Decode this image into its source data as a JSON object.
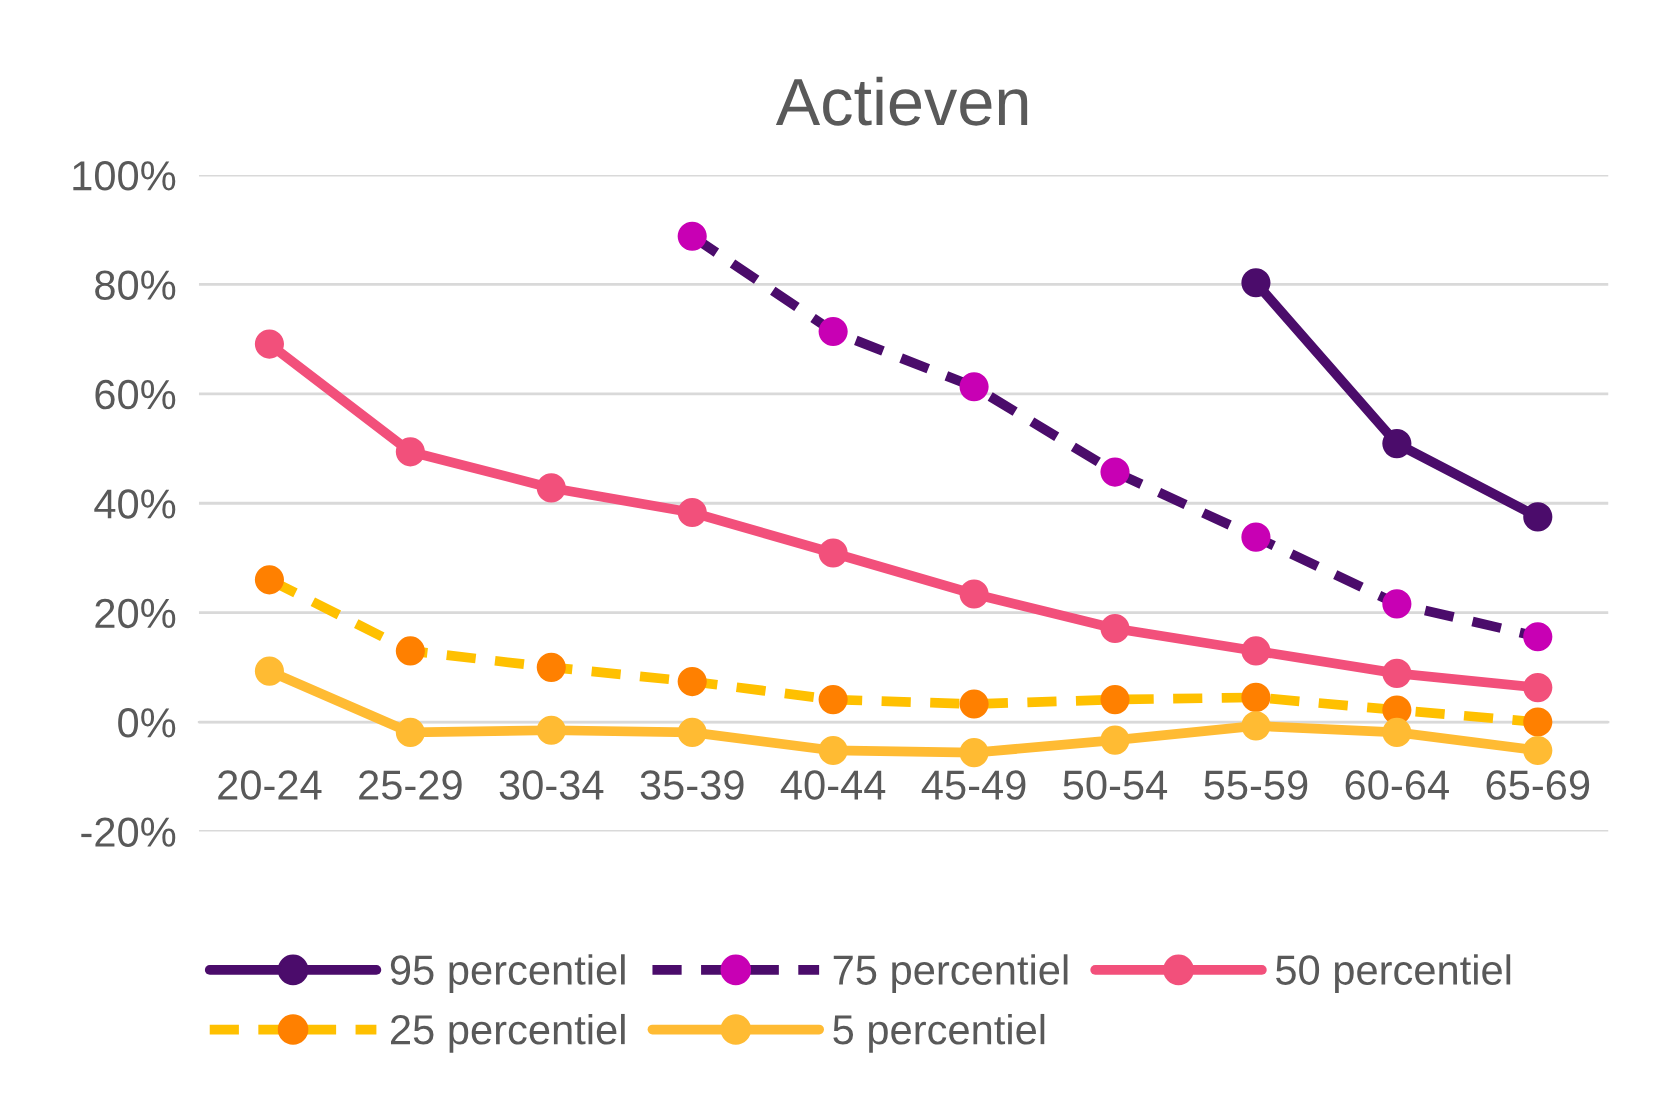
{
  "chart_data": {
    "type": "line",
    "title": "Actieven",
    "categories": [
      "20-24",
      "25-29",
      "30-34",
      "35-39",
      "40-44",
      "45-49",
      "50-54",
      "55-59",
      "60-64",
      "65-69"
    ],
    "series": [
      {
        "name": "95 percentiel",
        "color": "#4b0c6b",
        "colors": [
          "#4b0c6b",
          "#4b0c6b",
          "#4b0c6b",
          "#4b0c6b",
          "#4b0c6b",
          "#4b0c6b",
          "#4b0c6b",
          "#4b0c6b",
          "#4b0c6b",
          "#4b0c6b"
        ],
        "line_style": "solid",
        "values": [
          null,
          null,
          null,
          null,
          null,
          null,
          null,
          80.3,
          50.9,
          37.5
        ]
      },
      {
        "name": "75 percentiel",
        "color": "#4b0c6b",
        "colors": [
          "#c800b4",
          "#c800b4",
          "#c800b4",
          "#c800b4",
          "#c800b4",
          "#c800b4",
          "#c800b4",
          "#c800b4",
          "#c800b4",
          "#c800b4"
        ],
        "line_style": "dashed",
        "values": [
          null,
          null,
          null,
          88.8,
          71.4,
          61.3,
          45.7,
          33.8,
          21.6,
          15.6
        ]
      },
      {
        "name": "50 percentiel",
        "color": "#f2507b",
        "colors": [
          "#f2507b",
          "#f2507b",
          "#f2507b",
          "#f2507b",
          "#f2507b",
          "#f2507b",
          "#f2507b",
          "#f2507b",
          "#f2507b",
          "#f2507b"
        ],
        "line_style": "solid",
        "values": [
          69.1,
          49.4,
          42.8,
          38.3,
          30.9,
          23.4,
          17.1,
          13.0,
          8.9,
          6.3
        ]
      },
      {
        "name": "25 percentiel",
        "color": "#ffc000",
        "colors": [
          "#ff8000",
          "#ff8000",
          "#ff8000",
          "#ff8000",
          "#ff8000",
          "#ff8000",
          "#ff8000",
          "#ff8000",
          "#ff8000",
          "#ff8000"
        ],
        "line_style": "dashed",
        "values": [
          26.0,
          13.0,
          10.0,
          7.4,
          4.1,
          3.3,
          4.1,
          4.5,
          2.2,
          0.0
        ]
      },
      {
        "name": "5 percentiel",
        "color": "#ffbb33",
        "colors": [
          "#ffbb33",
          "#ffbb33",
          "#ffbb33",
          "#ffbb33",
          "#ffbb33",
          "#ffbb33",
          "#ffbb33",
          "#ffbb33",
          "#ffbb33",
          "#ffbb33"
        ],
        "line_style": "solid",
        "values": [
          9.3,
          -1.9,
          -1.5,
          -1.9,
          -5.2,
          -5.6,
          -3.3,
          -0.7,
          -1.9,
          -5.2
        ]
      }
    ],
    "ylim": [
      -20,
      100
    ],
    "yticks": [
      {
        "value": -20,
        "label": "-20%"
      },
      {
        "value": 0,
        "label": "0%"
      },
      {
        "value": 20,
        "label": "20%"
      },
      {
        "value": 40,
        "label": "40%"
      },
      {
        "value": 60,
        "label": "60%"
      },
      {
        "value": 80,
        "label": "80%"
      },
      {
        "value": 100,
        "label": "100%"
      }
    ],
    "grid": "y",
    "legend": "bottom",
    "marker": "circle"
  }
}
